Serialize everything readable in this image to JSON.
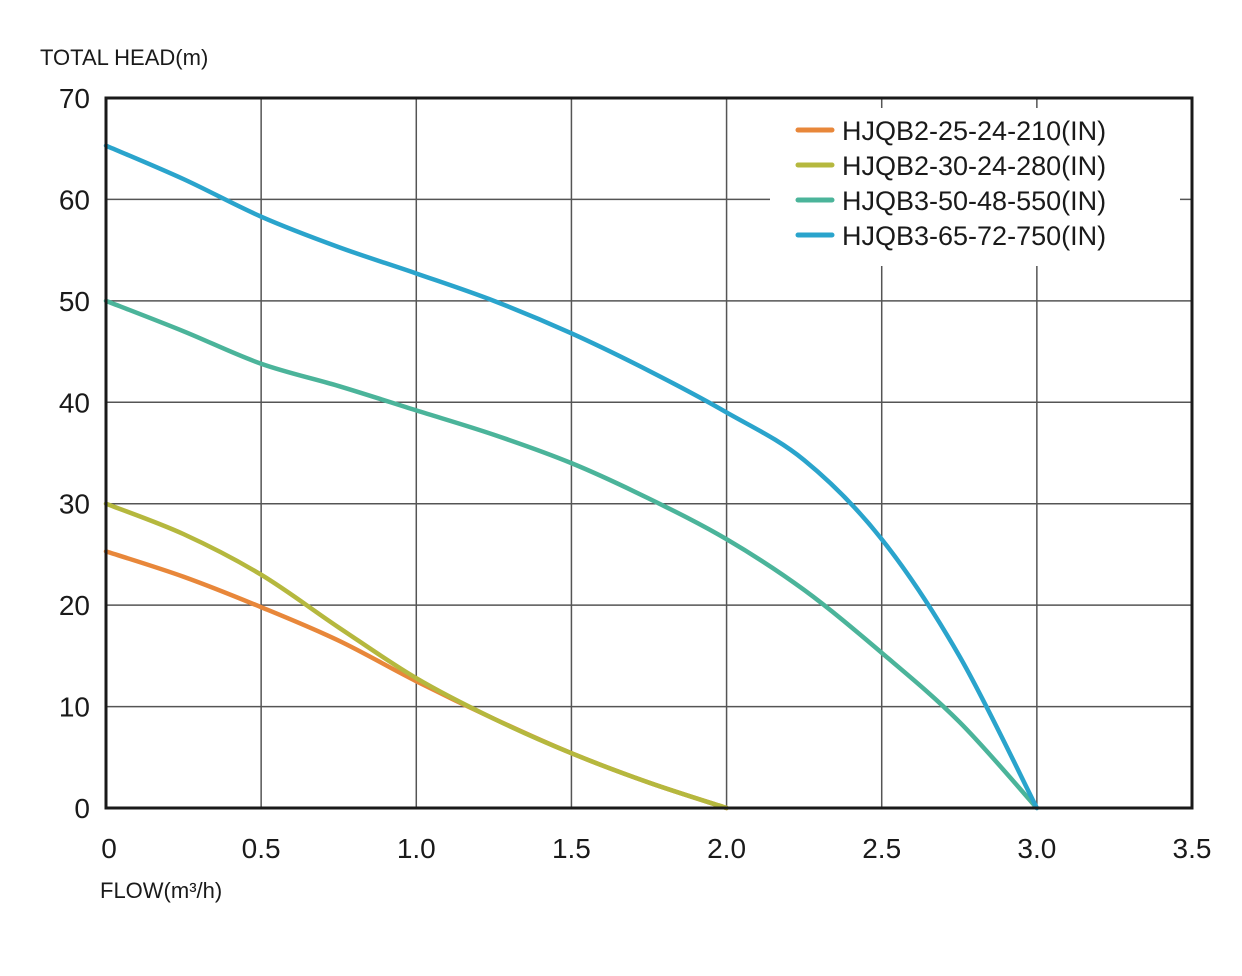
{
  "chart_data": {
    "type": "line",
    "ylabel": "TOTAL HEAD(m)",
    "xlabel": "FLOW(m³/h)",
    "xlim": [
      0,
      3.5
    ],
    "ylim": [
      0,
      70
    ],
    "x_ticks": [
      "0",
      "0.5",
      "1.0",
      "1.5",
      "2.0",
      "2.5",
      "3.0",
      "3.5"
    ],
    "y_ticks": [
      "0",
      "10",
      "20",
      "30",
      "40",
      "50",
      "60",
      "70"
    ],
    "x_tick_values": [
      0,
      0.5,
      1.0,
      1.5,
      2.0,
      2.5,
      3.0,
      3.5
    ],
    "y_tick_values": [
      0,
      10,
      20,
      30,
      40,
      50,
      60,
      70
    ],
    "grid": true,
    "legend_position": "top-right",
    "series": [
      {
        "name": "HJQB2-25-24-210(IN)",
        "color": "#e8873a",
        "points": [
          [
            0,
            25.3
          ],
          [
            0.25,
            22.8
          ],
          [
            0.5,
            19.8
          ],
          [
            0.75,
            16.5
          ],
          [
            1.0,
            12.5
          ],
          [
            1.25,
            8.8
          ],
          [
            1.5,
            5.4
          ],
          [
            1.75,
            2.5
          ],
          [
            2.0,
            0
          ]
        ]
      },
      {
        "name": "HJQB2-30-24-280(IN)",
        "color": "#b5b83e",
        "points": [
          [
            0,
            30.0
          ],
          [
            0.25,
            27.0
          ],
          [
            0.5,
            23.0
          ],
          [
            0.75,
            17.8
          ],
          [
            1.0,
            12.8
          ],
          [
            1.25,
            8.8
          ],
          [
            1.5,
            5.4
          ],
          [
            1.75,
            2.5
          ],
          [
            2.0,
            0
          ]
        ]
      },
      {
        "name": "HJQB3-50-48-550(IN)",
        "color": "#4bb49a",
        "points": [
          [
            0,
            50.0
          ],
          [
            0.25,
            47.0
          ],
          [
            0.5,
            43.8
          ],
          [
            0.75,
            41.6
          ],
          [
            1.0,
            39.2
          ],
          [
            1.25,
            36.8
          ],
          [
            1.5,
            34.0
          ],
          [
            1.75,
            30.5
          ],
          [
            2.0,
            26.5
          ],
          [
            2.25,
            21.5
          ],
          [
            2.5,
            15.3
          ],
          [
            2.75,
            8.5
          ],
          [
            3.0,
            0
          ]
        ]
      },
      {
        "name": "HJQB3-65-72-750(IN)",
        "color": "#2aa4cc",
        "points": [
          [
            0,
            65.3
          ],
          [
            0.25,
            62.0
          ],
          [
            0.5,
            58.3
          ],
          [
            0.75,
            55.3
          ],
          [
            1.0,
            52.7
          ],
          [
            1.25,
            50.0
          ],
          [
            1.5,
            46.8
          ],
          [
            1.75,
            43.1
          ],
          [
            2.0,
            39.0
          ],
          [
            2.25,
            34.3
          ],
          [
            2.5,
            26.5
          ],
          [
            2.75,
            15.0
          ],
          [
            3.0,
            0
          ]
        ]
      }
    ]
  }
}
